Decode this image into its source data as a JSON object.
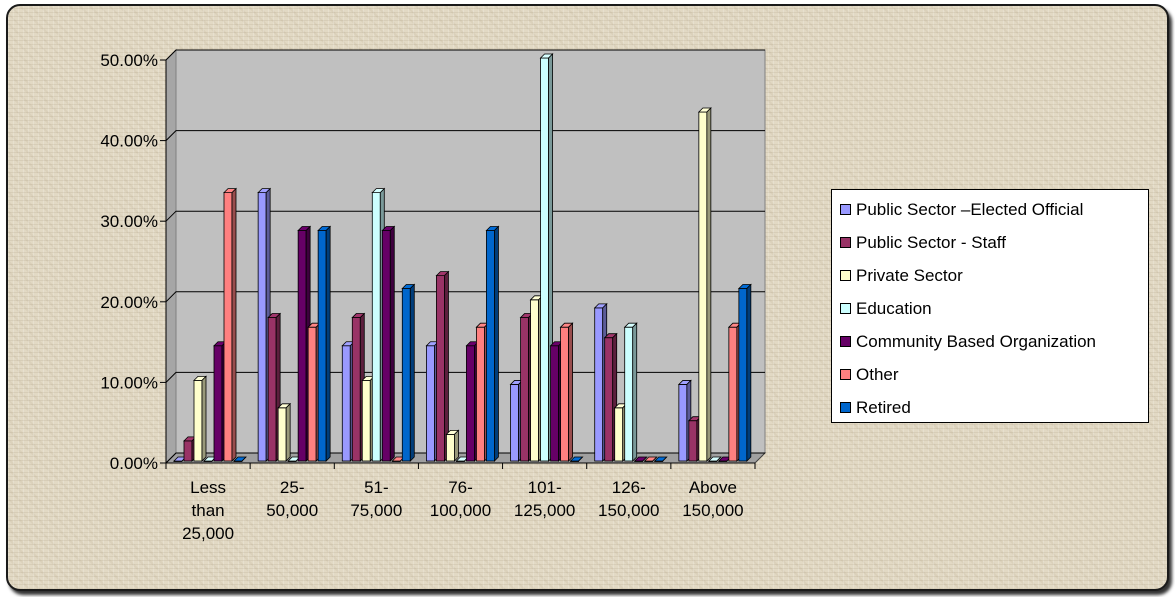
{
  "chart_data": {
    "type": "bar",
    "title": "",
    "xlabel": "",
    "ylabel": "",
    "ylim": [
      0,
      0.5
    ],
    "y_ticks": [
      "0.00%",
      "10.00%",
      "20.00%",
      "30.00%",
      "40.00%",
      "50.00%"
    ],
    "y_tick_values": [
      0,
      0.1,
      0.2,
      0.3,
      0.4,
      0.5
    ],
    "grid": true,
    "legend_position": "right",
    "categories": [
      [
        "Less",
        "than",
        "25,000"
      ],
      [
        "25-",
        "50,000"
      ],
      [
        "51-",
        "75,000"
      ],
      [
        "76-",
        "100,000"
      ],
      [
        "101-",
        "125,000"
      ],
      [
        "126-",
        "150,000"
      ],
      [
        "Above",
        "150,000"
      ]
    ],
    "series": [
      {
        "name": "Public Sector –Elected Official",
        "color": "#9999ff",
        "values": [
          0.0,
          0.333,
          0.143,
          0.143,
          0.095,
          0.19,
          0.095
        ]
      },
      {
        "name": "Public Sector - Staff",
        "color": "#993366",
        "values": [
          0.025,
          0.178,
          0.178,
          0.23,
          0.178,
          0.153,
          0.05
        ]
      },
      {
        "name": "Private Sector",
        "color": "#ffffcc",
        "values": [
          0.1,
          0.066,
          0.1,
          0.033,
          0.2,
          0.066,
          0.433
        ]
      },
      {
        "name": "Education",
        "color": "#ccffff",
        "values": [
          0.0,
          0.0,
          0.333,
          0.0,
          0.5,
          0.166,
          0.0
        ]
      },
      {
        "name": "Community Based Organization",
        "color": "#660066",
        "values": [
          0.143,
          0.286,
          0.286,
          0.143,
          0.143,
          0.0,
          0.0
        ]
      },
      {
        "name": "Other",
        "color": "#ff8080",
        "values": [
          0.333,
          0.166,
          0.0,
          0.166,
          0.166,
          0.0,
          0.166
        ]
      },
      {
        "name": "Retired",
        "color": "#0066cc",
        "values": [
          0.0,
          0.286,
          0.214,
          0.286,
          0.0,
          0.0,
          0.214
        ]
      }
    ]
  }
}
